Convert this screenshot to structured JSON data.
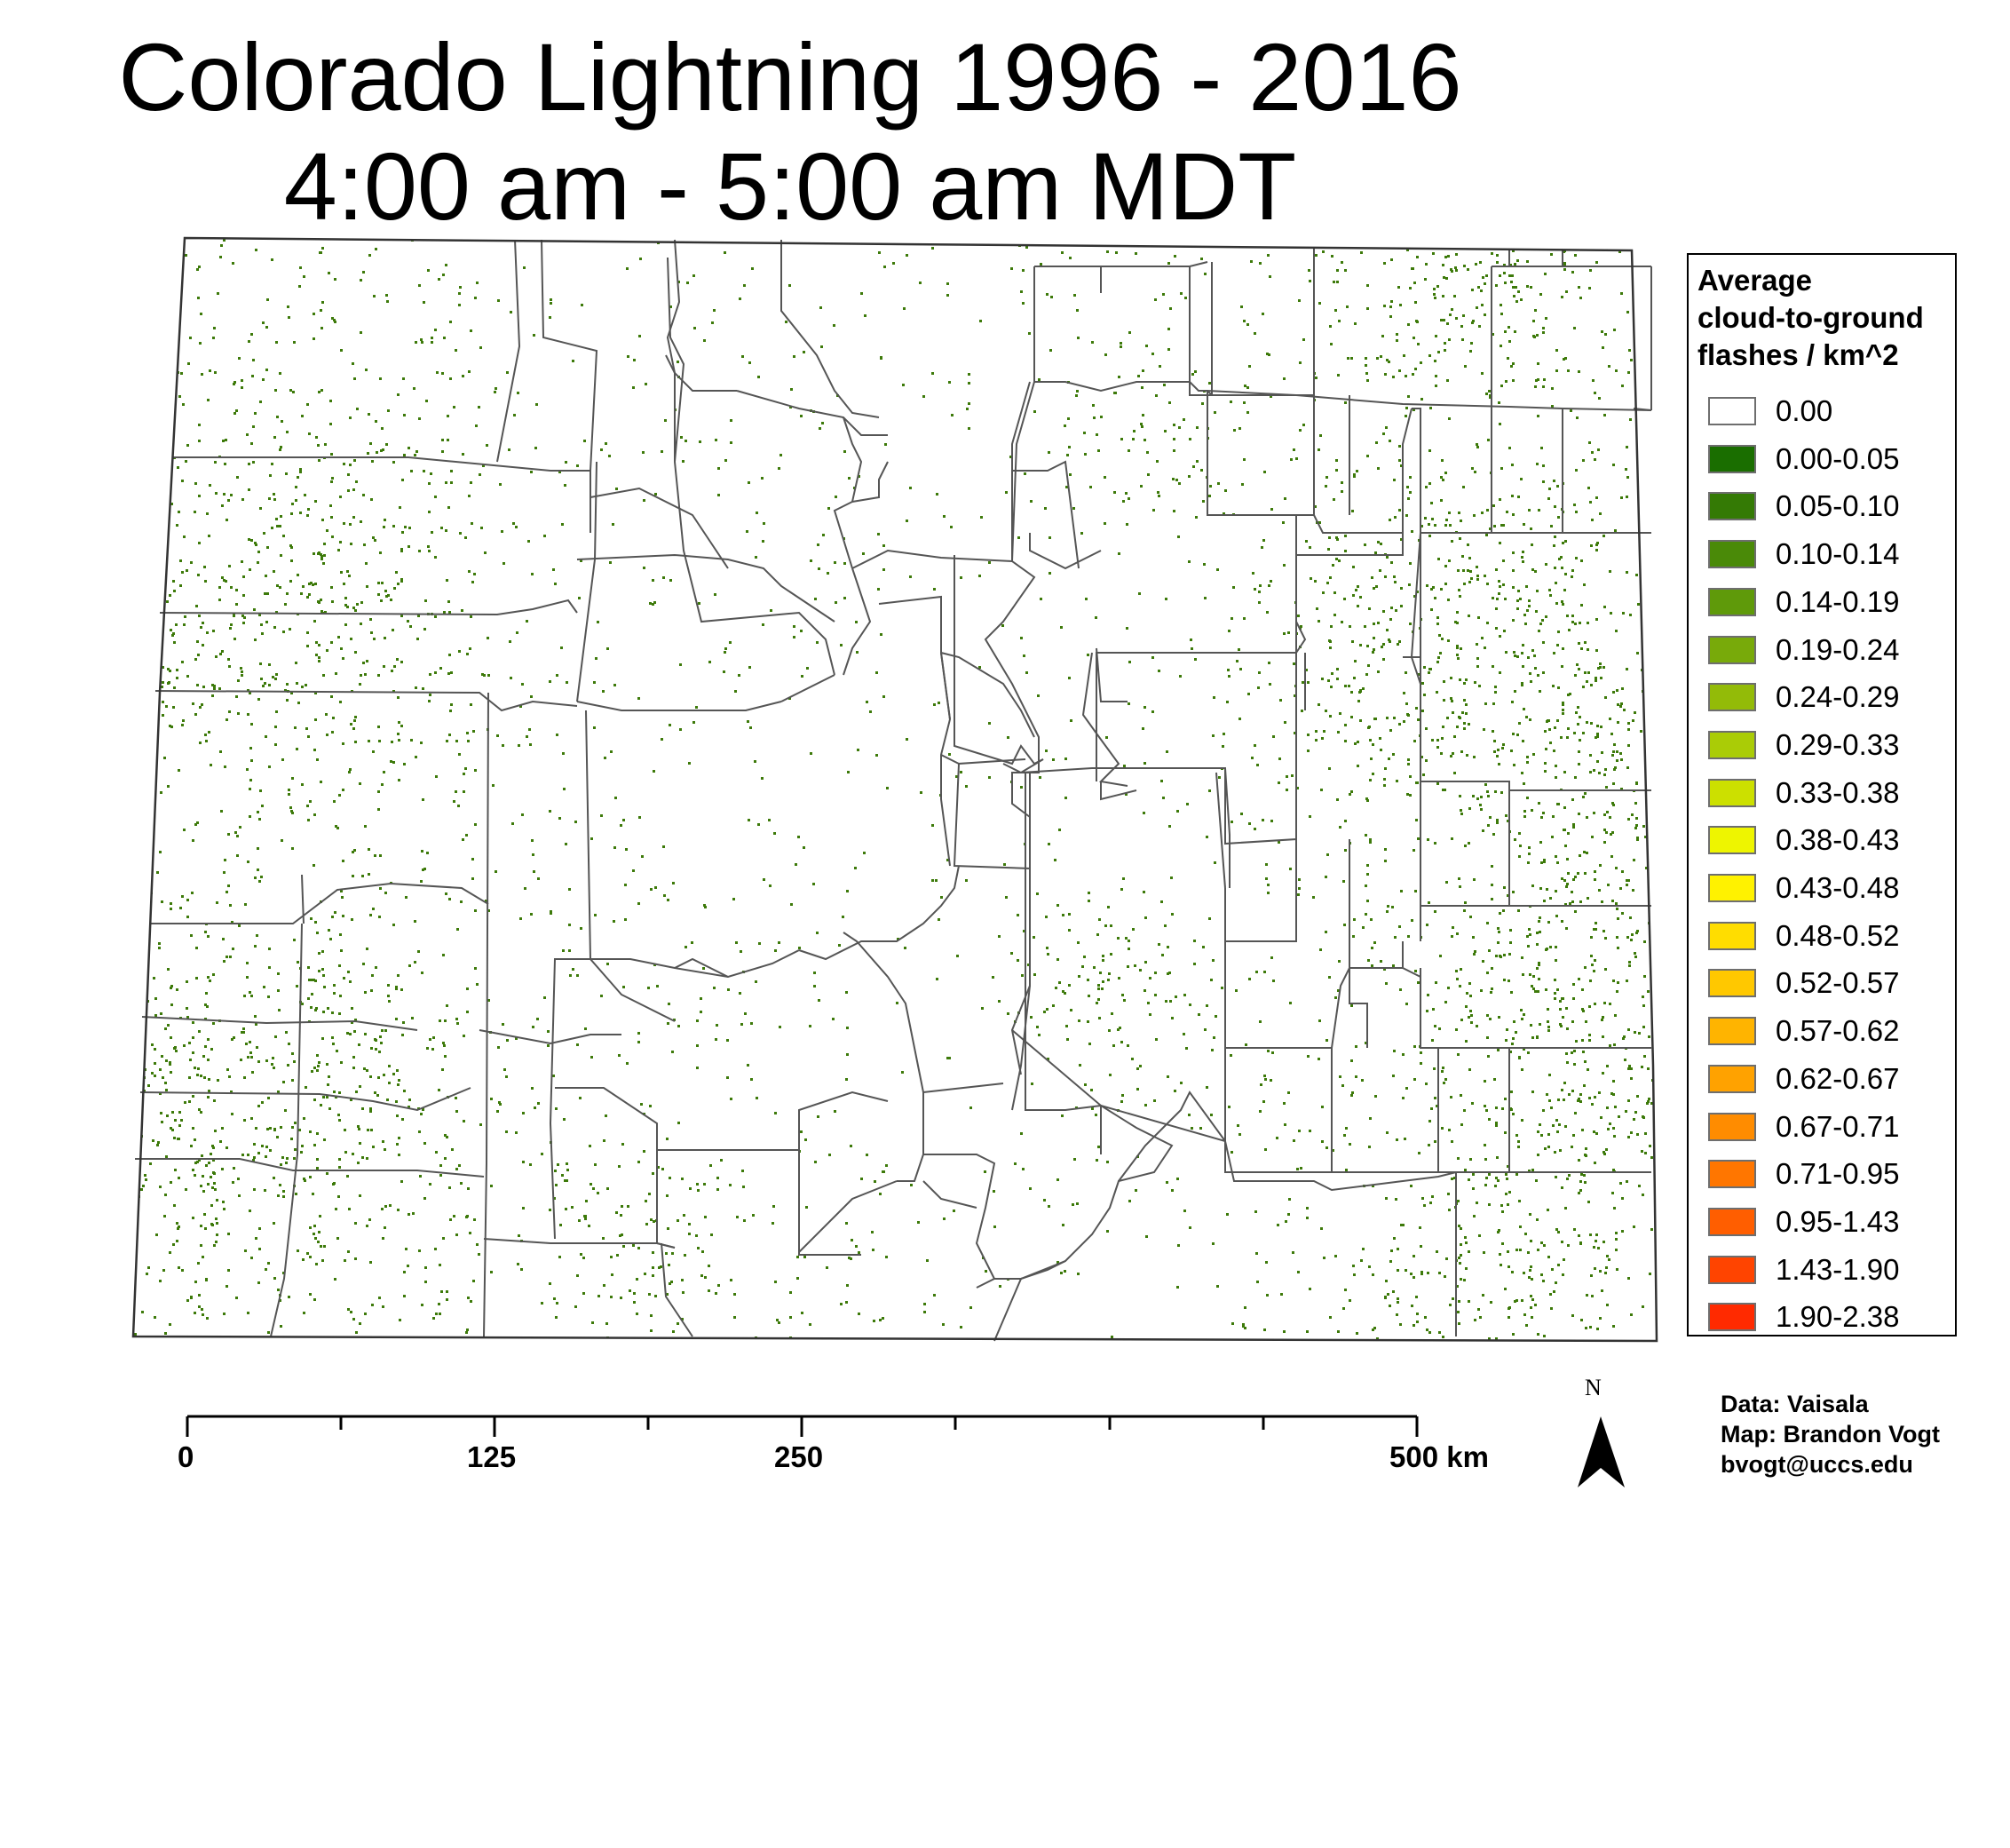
{
  "title": {
    "line1": "Colorado Lightning 1996 - 2016",
    "line2": "4:00 am - 5:00 am MDT"
  },
  "map": {
    "region": "Colorado",
    "strike_color": "#3d7a0a",
    "boundary_color": "#555555"
  },
  "legend": {
    "title_lines": [
      "Average",
      "cloud-to-ground",
      "flashes / km^2"
    ],
    "items": [
      {
        "label": "0.00",
        "color": "#ffffff"
      },
      {
        "label": "0.00-0.05",
        "color": "#1a6e00"
      },
      {
        "label": "0.05-0.10",
        "color": "#347a05"
      },
      {
        "label": "0.10-0.14",
        "color": "#4a8a08"
      },
      {
        "label": "0.14-0.19",
        "color": "#5f9a0a"
      },
      {
        "label": "0.19-0.24",
        "color": "#78aa0a"
      },
      {
        "label": "0.24-0.29",
        "color": "#93bb08"
      },
      {
        "label": "0.29-0.33",
        "color": "#aacc06"
      },
      {
        "label": "0.33-0.38",
        "color": "#cce000"
      },
      {
        "label": "0.38-0.43",
        "color": "#eef500"
      },
      {
        "label": "0.43-0.48",
        "color": "#fff200"
      },
      {
        "label": "0.48-0.52",
        "color": "#ffdd00"
      },
      {
        "label": "0.52-0.57",
        "color": "#ffc800"
      },
      {
        "label": "0.57-0.62",
        "color": "#ffb400"
      },
      {
        "label": "0.62-0.67",
        "color": "#ffa200"
      },
      {
        "label": "0.67-0.71",
        "color": "#ff8c00"
      },
      {
        "label": "0.71-0.95",
        "color": "#ff7600"
      },
      {
        "label": "0.95-1.43",
        "color": "#ff5e00"
      },
      {
        "label": "1.43-1.90",
        "color": "#ff4400"
      },
      {
        "label": "1.90-2.38",
        "color": "#ff2a00"
      }
    ]
  },
  "scale_bar": {
    "labels": [
      "0",
      "125",
      "250",
      "500 km"
    ]
  },
  "north_arrow": {
    "letter": "N"
  },
  "credits": {
    "data": "Data: Vaisala",
    "map": "Map: Brandon Vogt",
    "email": "bvogt@uccs.edu"
  }
}
